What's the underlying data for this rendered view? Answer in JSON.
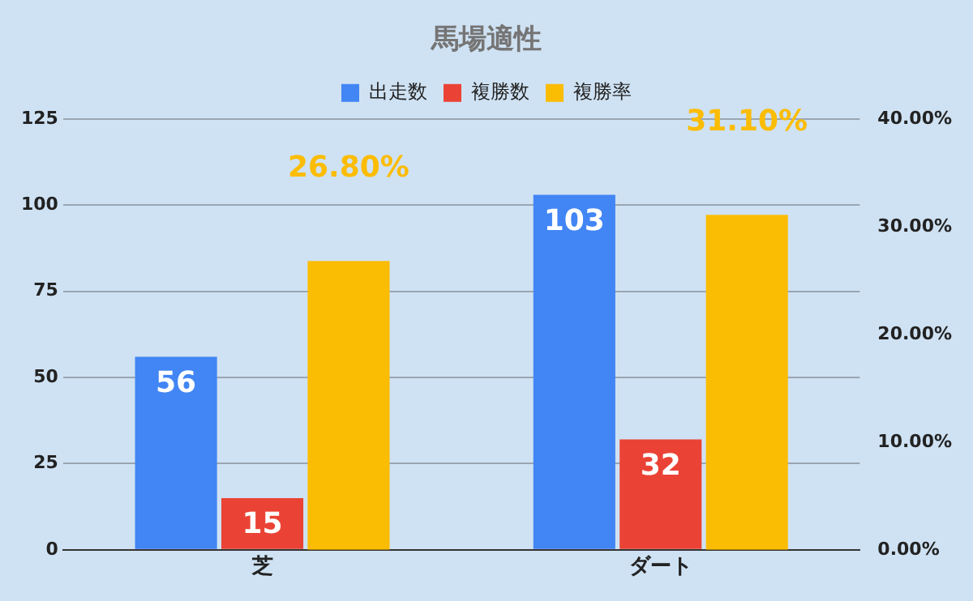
{
  "chart_data": {
    "type": "bar",
    "title": "馬場適性",
    "categories": [
      "芝",
      "ダート"
    ],
    "series": [
      {
        "name": "出走数",
        "color": "#4285f4",
        "values": [
          56,
          103
        ],
        "value_labels": [
          "56",
          "103"
        ]
      },
      {
        "name": "複勝数",
        "color": "#ea4335",
        "values": [
          15,
          32
        ],
        "value_labels": [
          "15",
          "32"
        ]
      },
      {
        "name": "複勝率",
        "color": "#fbbc04",
        "values": [
          26.8,
          31.1
        ],
        "axis": "y2",
        "value_labels": [
          "26.80%",
          "31.10%"
        ]
      }
    ],
    "ylim": [
      0,
      125
    ],
    "yticks": [
      0,
      25,
      50,
      75,
      100,
      125
    ],
    "y2lim": [
      0,
      40
    ],
    "y2ticks": [
      {
        "value": 0,
        "label": "0.00%"
      },
      {
        "value": 10,
        "label": "10.00%"
      },
      {
        "value": 20,
        "label": "20.00%"
      },
      {
        "value": 30,
        "label": "30.00%"
      },
      {
        "value": 40,
        "label": "40.00%"
      }
    ],
    "grid": "y",
    "legend": "top"
  }
}
